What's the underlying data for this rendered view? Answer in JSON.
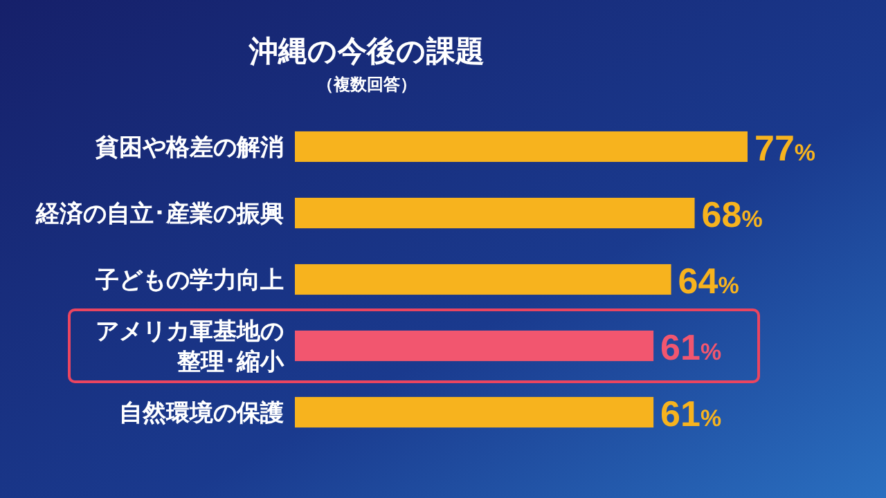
{
  "chart_data": {
    "type": "bar",
    "orientation": "horizontal",
    "title": "沖縄の今後の課題",
    "subtitle": "（複数回答）",
    "categories": [
      "貧困や格差の解消",
      "経済の自立･産業の振興",
      "子どもの学力向上",
      "アメリカ軍基地の整理･縮小",
      "自然環境の保護"
    ],
    "values": [
      77,
      68,
      64,
      61,
      61
    ],
    "colors": [
      "#f7b31e",
      "#f7b31e",
      "#f7b31e",
      "#f2566f",
      "#f7b31e"
    ],
    "value_labels": [
      "77%",
      "68%",
      "64%",
      "61%",
      "61%"
    ]
  }
}
